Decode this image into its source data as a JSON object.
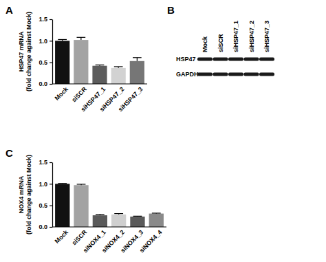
{
  "chart_data": [
    {
      "type": "bar",
      "title": "A",
      "y_label": [
        "HSP47 mRNA",
        "(fold change against Mock)"
      ],
      "categories": [
        "Mock",
        "siSCR",
        "siHSP47_1",
        "siHSP47_2",
        "siHSP47_3"
      ],
      "values": [
        1.0,
        1.02,
        0.42,
        0.37,
        0.53
      ],
      "errors": [
        0.03,
        0.06,
        0.02,
        0.03,
        0.08
      ],
      "colors": [
        "#111111",
        "#a3a3a3",
        "#5c5c5c",
        "#d2d2d2",
        "#767676"
      ],
      "ylim": [
        0,
        1.5
      ],
      "yticks": [
        {
          "value": 0,
          "label": "0.0"
        },
        {
          "value": 0.5,
          "label": "0.5"
        },
        {
          "value": 1,
          "label": "1.0"
        },
        {
          "value": 1.5,
          "label": "1.5"
        }
      ]
    },
    {
      "type": "bar",
      "title": "C",
      "y_label": [
        "NOX4 mRNA",
        "(fold change against Mock)"
      ],
      "categories": [
        "Mock",
        "siSCR",
        "siNOX4_1",
        "siNOX4_2",
        "siNOX4_3",
        "siNOX4_4"
      ],
      "values": [
        1.0,
        0.97,
        0.27,
        0.29,
        0.24,
        0.31
      ],
      "errors": [
        0.01,
        0.02,
        0.02,
        0.02,
        0.01,
        0.01
      ],
      "colors": [
        "#111111",
        "#a3a3a3",
        "#5a5a5a",
        "#cfcfcf",
        "#5a5a5a",
        "#8a8a8a"
      ],
      "ylim": [
        0,
        1.5
      ],
      "yticks": [
        {
          "value": 0,
          "label": "0.0"
        },
        {
          "value": 0.5,
          "label": "0.5"
        },
        {
          "value": 1,
          "label": "1.0"
        },
        {
          "value": 1.5,
          "label": "1.5"
        }
      ]
    }
  ],
  "blot": {
    "title": "B",
    "lanes": [
      "Mock",
      "siSCR",
      "siHSP47_1",
      "siHSP47_2",
      "siHSP47_3"
    ],
    "rows": [
      "HSP47",
      "GAPDH"
    ]
  }
}
